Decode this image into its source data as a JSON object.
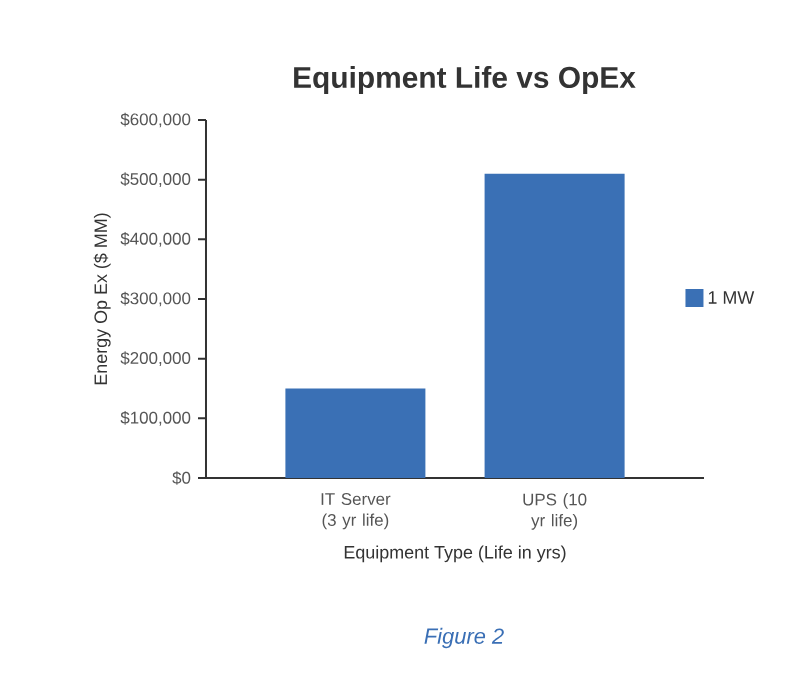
{
  "chart_data": {
    "type": "bar",
    "title": "Equipment Life vs OpEx",
    "xlabel": "Equipment Type (Life in yrs)",
    "ylabel": "Energy Op Ex ($ MM)",
    "categories": [
      "IT Server (3 yr life)",
      "UPS (10 yr life)"
    ],
    "series": [
      {
        "name": "1 MW",
        "color": "#3a70b5",
        "values": [
          150000,
          510000
        ]
      }
    ],
    "ylim": [
      0,
      600000
    ],
    "yticks": [
      {
        "value": 0,
        "label": "$0"
      },
      {
        "value": 100000,
        "label": "$100,000"
      },
      {
        "value": 200000,
        "label": "$200,000"
      },
      {
        "value": 300000,
        "label": "$300,000"
      },
      {
        "value": 400000,
        "label": "$400,000"
      },
      {
        "value": 500000,
        "label": "$500,000"
      },
      {
        "value": 600000,
        "label": "$600,000"
      }
    ],
    "legend": "right",
    "annotations": [
      "Figure 2"
    ]
  }
}
